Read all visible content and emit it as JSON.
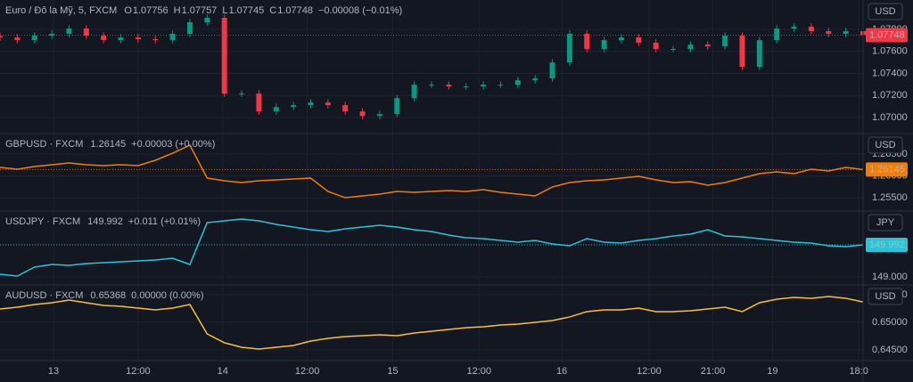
{
  "chart_data": [
    {
      "type": "candlestick",
      "title": "Euro / Đô la Mỹ, 5, FXCM",
      "ohlc": [
        {
          "key": "O",
          "value": "1.07756"
        },
        {
          "key": "H",
          "value": "1.07757"
        },
        {
          "key": "L",
          "value": "1.07745"
        },
        {
          "key": "C",
          "value": "1.07748"
        }
      ],
      "change": "−0.00008 (−0.01%)",
      "currency": "USD",
      "up_color": "#089981",
      "down_color": "#f23645",
      "show_last_price": true,
      "grid": true,
      "x": [
        0,
        2,
        4,
        6,
        8,
        10,
        12,
        14,
        16,
        18,
        20,
        22,
        24,
        26,
        28,
        30,
        32,
        34,
        36,
        38,
        40,
        42,
        44,
        46,
        48,
        50,
        52,
        54,
        56,
        58,
        60,
        62,
        64,
        66,
        68,
        70,
        72,
        74,
        76,
        78,
        80,
        82,
        84,
        86,
        88,
        90,
        92,
        94,
        96,
        98,
        100
      ],
      "open": [
        1.0774,
        1.07727,
        1.07703,
        1.07743,
        1.0776,
        1.07808,
        1.07743,
        1.07703,
        1.07727,
        1.07711,
        1.07703,
        1.0776,
        1.07865,
        1.07905,
        1.07217,
        1.07217,
        1.07055,
        1.07095,
        1.07112,
        1.07136,
        1.07112,
        1.07055,
        1.07014,
        1.07031,
        1.07176,
        1.07298,
        1.07298,
        1.07282,
        1.07282,
        1.07298,
        1.07298,
        1.07338,
        1.07355,
        1.075,
        1.0776,
        1.07622,
        1.07703,
        1.07727,
        1.07679,
        1.07622,
        1.07622,
        1.07662,
        1.07646,
        1.07743,
        1.0746,
        1.07703,
        1.07808,
        1.07824,
        1.07784,
        1.0776,
        1.07784
      ],
      "high": [
        1.0777,
        1.07757,
        1.07773,
        1.0779,
        1.07838,
        1.07838,
        1.07773,
        1.07757,
        1.07757,
        1.07741,
        1.0779,
        1.07895,
        1.07935,
        1.07935,
        1.07247,
        1.07247,
        1.07125,
        1.07142,
        1.07166,
        1.07166,
        1.07142,
        1.07085,
        1.07061,
        1.07206,
        1.07328,
        1.07328,
        1.07328,
        1.07312,
        1.07328,
        1.07328,
        1.07368,
        1.07385,
        1.0753,
        1.0779,
        1.0779,
        1.07733,
        1.07757,
        1.07757,
        1.07709,
        1.07652,
        1.07692,
        1.07692,
        1.07773,
        1.07773,
        1.07733,
        1.07838,
        1.07854,
        1.07854,
        1.07814,
        1.07814,
        1.07814
      ],
      "low": [
        1.07697,
        1.07673,
        1.07673,
        1.07713,
        1.0773,
        1.07713,
        1.07673,
        1.07673,
        1.07681,
        1.07673,
        1.07673,
        1.0773,
        1.07835,
        1.07187,
        1.07187,
        1.07025,
        1.07025,
        1.07065,
        1.07082,
        1.07082,
        1.07025,
        1.06984,
        1.06984,
        1.07001,
        1.07146,
        1.07268,
        1.07252,
        1.07252,
        1.07252,
        1.07268,
        1.07268,
        1.07308,
        1.07325,
        1.0747,
        1.07592,
        1.07592,
        1.07673,
        1.07649,
        1.07592,
        1.07592,
        1.07592,
        1.07616,
        1.07616,
        1.0743,
        1.0743,
        1.07673,
        1.07778,
        1.07754,
        1.0773,
        1.0773,
        1.07718
      ],
      "close": [
        1.07727,
        1.07703,
        1.07743,
        1.0776,
        1.07808,
        1.07743,
        1.07703,
        1.07727,
        1.07711,
        1.07703,
        1.0776,
        1.07865,
        1.07905,
        1.07217,
        1.07217,
        1.07055,
        1.07095,
        1.07112,
        1.07136,
        1.07112,
        1.07055,
        1.07014,
        1.07031,
        1.07176,
        1.07298,
        1.07298,
        1.07282,
        1.07282,
        1.07298,
        1.07298,
        1.07338,
        1.07355,
        1.075,
        1.0776,
        1.07622,
        1.07703,
        1.07727,
        1.07679,
        1.07622,
        1.07622,
        1.07662,
        1.07646,
        1.07743,
        1.0746,
        1.07703,
        1.07808,
        1.07824,
        1.07784,
        1.0776,
        1.07784,
        1.07748
      ],
      "xlim": [
        0,
        100
      ],
      "ylim": [
        1.06854,
        1.08067
      ],
      "yticks": [
        {
          "value": 1.07,
          "label": "1.07000"
        },
        {
          "value": 1.072,
          "label": "1.07200"
        },
        {
          "value": 1.074,
          "label": "1.07400"
        },
        {
          "value": 1.076,
          "label": "1.07600"
        },
        {
          "value": 1.078,
          "label": "1.07800"
        }
      ]
    },
    {
      "type": "line",
      "change": "+0.00003 (+0.00%)",
      "currency": "USD",
      "show_last_price": true,
      "grid": true,
      "x": [
        0,
        2,
        4,
        6,
        8,
        10,
        12,
        14,
        16,
        18,
        20,
        22,
        24,
        26,
        28,
        30,
        32,
        34,
        36,
        38,
        40,
        42,
        44,
        46,
        48,
        50,
        52,
        54,
        56,
        58,
        60,
        62,
        64,
        66,
        68,
        70,
        72,
        74,
        76,
        78,
        80,
        82,
        84,
        86,
        88,
        90,
        92,
        94,
        96,
        98,
        100
      ],
      "series": [
        {
          "name": "GBPUSD · FXCM",
          "color": "#f57c00",
          "values": [
            1.26194,
            1.26153,
            1.26214,
            1.26255,
            1.26296,
            1.26255,
            1.26235,
            1.26255,
            1.26235,
            1.26357,
            1.2652,
            1.26704,
            1.25949,
            1.25888,
            1.25847,
            1.25888,
            1.25908,
            1.25929,
            1.25949,
            1.25643,
            1.255,
            1.25541,
            1.25582,
            1.25643,
            1.25623,
            1.25643,
            1.25663,
            1.25643,
            1.25684,
            1.25623,
            1.25582,
            1.25541,
            1.25745,
            1.25847,
            1.25888,
            1.25908,
            1.25949,
            1.2599,
            1.25908,
            1.25847,
            1.25867,
            1.25786,
            1.25847,
            1.25949,
            1.26051,
            1.26092,
            1.26051,
            1.26153,
            1.26112,
            1.26194,
            1.26145
          ]
        }
      ],
      "xlim": [
        0,
        100
      ],
      "ylim": [
        1.25194,
        1.26969
      ],
      "yticks": [
        {
          "value": 1.255,
          "label": "1.25500"
        },
        {
          "value": 1.26,
          "label": "1.26000"
        },
        {
          "value": 1.265,
          "label": "1.26500"
        }
      ]
    },
    {
      "type": "line",
      "change": "+0.011 (+0.01%)",
      "currency": "JPY",
      "show_last_price": true,
      "grid": true,
      "x": [
        0,
        2,
        4,
        6,
        8,
        10,
        12,
        14,
        16,
        18,
        20,
        22,
        24,
        26,
        28,
        30,
        32,
        34,
        36,
        38,
        40,
        42,
        44,
        46,
        48,
        50,
        52,
        54,
        56,
        58,
        60,
        62,
        64,
        66,
        68,
        70,
        72,
        74,
        76,
        78,
        80,
        82,
        84,
        86,
        88,
        90,
        92,
        94,
        96,
        98,
        100
      ],
      "series": [
        {
          "name": "USDJPY · FXCM",
          "color": "#26c6da",
          "values": [
            149.083,
            149.028,
            149.303,
            149.386,
            149.358,
            149.413,
            149.441,
            149.468,
            149.496,
            149.523,
            149.579,
            149.386,
            150.68,
            150.736,
            150.791,
            150.736,
            150.625,
            150.543,
            150.46,
            150.405,
            150.488,
            150.543,
            150.598,
            150.543,
            150.46,
            150.405,
            150.295,
            150.212,
            150.185,
            150.129,
            150.074,
            150.129,
            150.019,
            149.964,
            150.185,
            150.074,
            150.047,
            150.129,
            150.185,
            150.267,
            150.322,
            150.46,
            150.267,
            150.24,
            150.185,
            150.129,
            150.074,
            150.047,
            149.964,
            149.937,
            149.992
          ]
        }
      ],
      "xlim": [
        0,
        100
      ],
      "ylim": [
        148.752,
        151.039
      ],
      "yticks": [
        {
          "value": 149,
          "label": "149.000"
        },
        {
          "value": 150,
          "label": "150.000"
        }
      ]
    },
    {
      "type": "line",
      "change": "0.00000 (0.00%)",
      "currency": "USD",
      "show_last_price": false,
      "grid": true,
      "x": [
        0,
        2,
        4,
        6,
        8,
        10,
        12,
        14,
        16,
        18,
        20,
        22,
        24,
        26,
        28,
        30,
        32,
        34,
        36,
        38,
        40,
        42,
        44,
        46,
        48,
        50,
        52,
        54,
        56,
        58,
        60,
        62,
        64,
        66,
        68,
        70,
        72,
        74,
        76,
        78,
        80,
        82,
        84,
        86,
        88,
        90,
        92,
        94,
        96,
        98,
        100
      ],
      "series": [
        {
          "name": "AUDUSD · FXCM",
          "color": "#f9c22b",
          "values": [
            0.65242,
            0.65274,
            0.65323,
            0.65355,
            0.65403,
            0.65355,
            0.65306,
            0.6529,
            0.65258,
            0.65226,
            0.65258,
            0.65323,
            0.6479,
            0.64629,
            0.64548,
            0.64516,
            0.64548,
            0.64581,
            0.64661,
            0.6471,
            0.64742,
            0.64758,
            0.64774,
            0.64758,
            0.64806,
            0.64839,
            0.64871,
            0.64903,
            0.64919,
            0.64952,
            0.64968,
            0.65,
            0.65032,
            0.65097,
            0.65194,
            0.65226,
            0.65226,
            0.65258,
            0.65194,
            0.65194,
            0.6521,
            0.65242,
            0.65274,
            0.65194,
            0.65355,
            0.65419,
            0.65452,
            0.65436,
            0.65468,
            0.65436,
            0.65368
          ]
        }
      ],
      "xlim": [
        0,
        100
      ],
      "ylim": [
        0.64306,
        0.65677
      ],
      "yticks": [
        {
          "value": 0.645,
          "label": "0.64500"
        },
        {
          "value": 0.65,
          "label": "0.65000"
        },
        {
          "value": 0.655,
          "label": "0.65500"
        }
      ],
      "xticks": [
        {
          "value": 6.2,
          "label": "13"
        },
        {
          "value": 16,
          "label": "12:00"
        },
        {
          "value": 25.8,
          "label": "14"
        },
        {
          "value": 35.6,
          "label": "12:00"
        },
        {
          "value": 45.5,
          "label": "15"
        },
        {
          "value": 55.5,
          "label": "12:00"
        },
        {
          "value": 65.1,
          "label": "16"
        },
        {
          "value": 75.2,
          "label": "12:00"
        },
        {
          "value": 82.6,
          "label": "21:00"
        },
        {
          "value": 89.5,
          "label": "19"
        },
        {
          "value": 99.5,
          "label": "18:0"
        }
      ]
    }
  ]
}
